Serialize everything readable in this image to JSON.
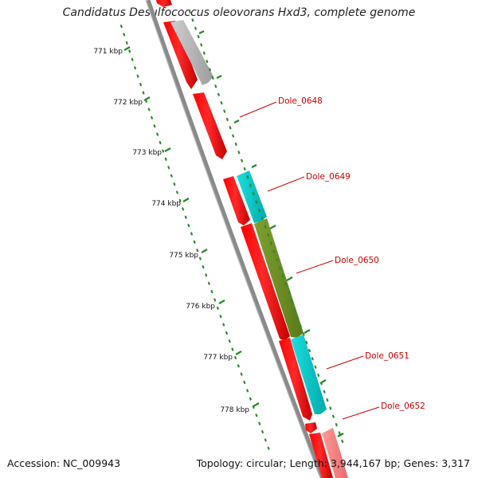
{
  "title": "Candidatus Desulfococcus oleovorans Hxd3, complete genome",
  "footer": {
    "accession": "Accession: NC_009943",
    "stats": "Topology: circular; Length: 3,944,167 bp; Genes: 3,317"
  },
  "map": {
    "ticks": [
      "771 kbp",
      "772 kbp",
      "773 kbp",
      "774 kbp",
      "775 kbp",
      "776 kbp",
      "777 kbp",
      "778 kbp"
    ],
    "callouts": [
      "Dole_0648",
      "Dole_0649",
      "Dole_0650",
      "Dole_0651",
      "Dole_0652"
    ],
    "colors": {
      "gene_red": "#ff0000",
      "gene_cyan": "#00cccc",
      "gene_olive": "#6b8e23",
      "gene_gray": "#b0b0b0",
      "gene_pink": "#ff8080",
      "backbone": "#8c8c8c",
      "tick_green": "#228b22",
      "label_red": "#cc0000"
    }
  }
}
